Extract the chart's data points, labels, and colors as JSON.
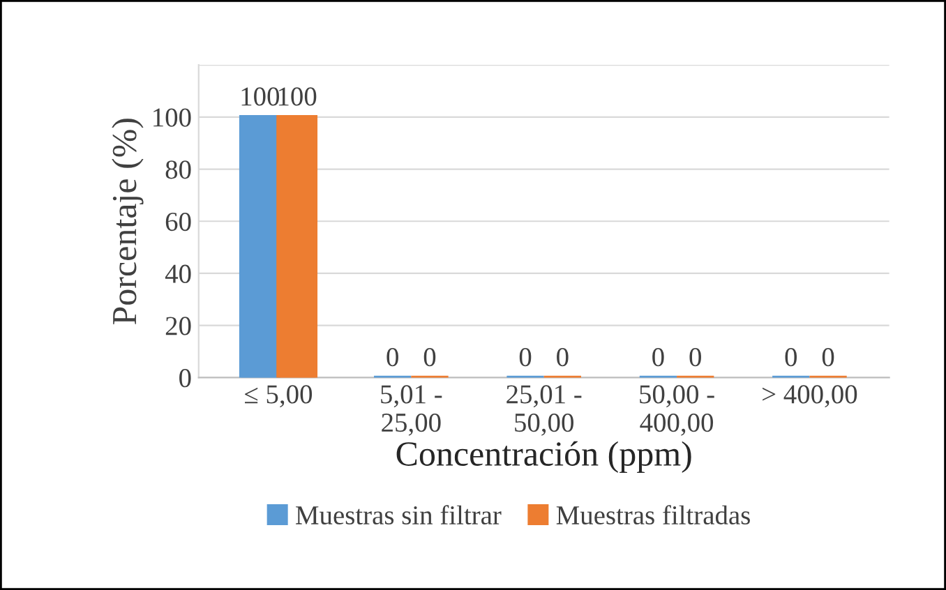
{
  "chart_data": {
    "type": "bar",
    "xlabel": "Concentración (ppm)",
    "ylabel": "Porcentaje (%)",
    "categories": [
      "≤ 5,00",
      "5,01 - 25,00",
      "25,01 - 50,00",
      "50,00 - 400,00",
      "> 400,00"
    ],
    "series": [
      {
        "name": "Muestras sin filtrar",
        "color": "#5b9bd5",
        "values": [
          100,
          0,
          0,
          0,
          0
        ]
      },
      {
        "name": "Muestras filtradas",
        "color": "#ed7d31",
        "values": [
          100,
          0,
          0,
          0,
          0
        ]
      }
    ],
    "ylim": [
      0,
      120
    ],
    "yticks": [
      0,
      20,
      40,
      60,
      80,
      100,
      {
        "value": 120,
        "label": null
      }
    ],
    "grid": "y",
    "legend": "bottom",
    "data_labels": true
  }
}
